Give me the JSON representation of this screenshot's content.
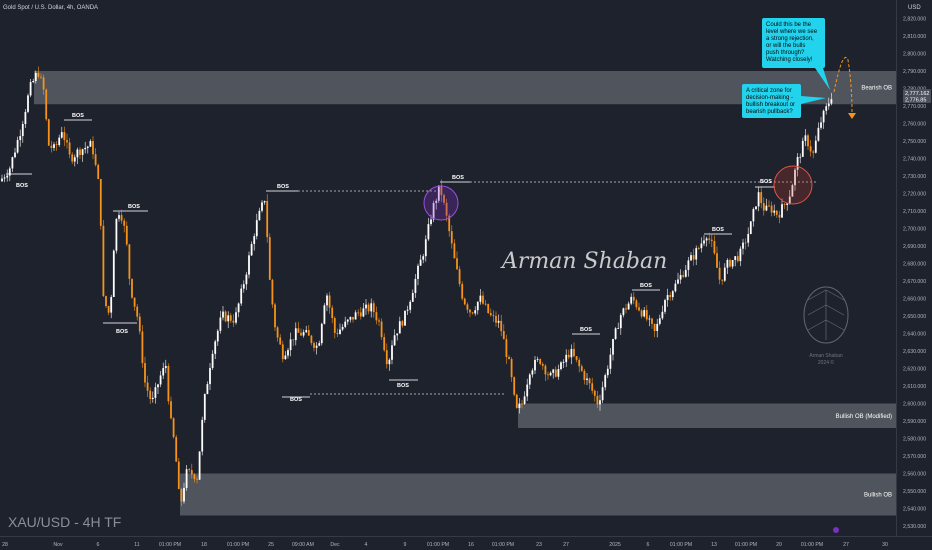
{
  "header": {
    "symbol_title": "Gold Spot / U.S. Dollar, 4h, OANDA"
  },
  "watermark": {
    "ticker": "XAU/USD - 4H TF",
    "signature": "Arman Shaban",
    "logo_name": "Arman Shaban",
    "logo_year": "2024 ©"
  },
  "price_axis": {
    "currency": "USD",
    "current_price": "2,777.162",
    "current_price_sub": "2,776.85"
  },
  "callouts": {
    "top": "Could this be the level where we see a strong rejection, or will the bulls push through? Watching closely!",
    "mid": "A critical zone for decision-making - bullish breakout or bearish pullback?"
  },
  "colors": {
    "background": "#1e222d",
    "zone": "#7a7d85",
    "candle_up": "#ffffff",
    "candle_down": "#f7931a",
    "callout_bg": "#22d3ee",
    "circle_purple": "#7b2fbe",
    "circle_red": "#c0392b"
  },
  "chart_data": {
    "type": "candlestick",
    "title": "Gold Spot / U.S. Dollar, 4h, OANDA",
    "ylim": [
      2525,
      2830
    ],
    "y_ticks": [
      "2,530.000",
      "2,540.000",
      "2,550.000",
      "2,560.000",
      "2,570.000",
      "2,580.000",
      "2,590.000",
      "2,600.000",
      "2,610.000",
      "2,620.000",
      "2,630.000",
      "2,640.000",
      "2,650.000",
      "2,660.000",
      "2,670.000",
      "2,680.000",
      "2,690.000",
      "2,700.000",
      "2,710.000",
      "2,720.000",
      "2,730.000",
      "2,740.000",
      "2,750.000",
      "2,760.000",
      "2,770.000",
      "2,780.000",
      "2,790.000",
      "2,800.000",
      "2,810.000",
      "2,820.000"
    ],
    "x_ticks": [
      "28",
      "Nov",
      "6",
      "11",
      "01:00 PM",
      "18",
      "01:00 PM",
      "25",
      "09:00 AM",
      "Dec",
      "4",
      "9",
      "01:00 PM",
      "16",
      "01:00 PM",
      "23",
      "27",
      "2025",
      "6",
      "01:00 PM",
      "13",
      "01:00 PM",
      "20",
      "01:00 PM",
      "27",
      "30"
    ],
    "zones": [
      {
        "label": "Bearish OB",
        "low": 2771,
        "high": 2790
      },
      {
        "label": "Bullish OB (Modified)",
        "low": 2586,
        "high": 2600
      },
      {
        "label": "Bullish OB",
        "low": 2536,
        "high": 2560
      }
    ],
    "bos_labels": [
      "BOS",
      "BOS",
      "BOS",
      "BOS",
      "BOS",
      "BOS",
      "BOS",
      "BOS",
      "BOS",
      "BOS",
      "BOS",
      "BOS"
    ],
    "price_path": [
      [
        0,
        2727
      ],
      [
        10,
        2735
      ],
      [
        20,
        2755
      ],
      [
        30,
        2780
      ],
      [
        38,
        2790
      ],
      [
        44,
        2778
      ],
      [
        48,
        2748
      ],
      [
        55,
        2745
      ],
      [
        62,
        2757
      ],
      [
        70,
        2740
      ],
      [
        80,
        2745
      ],
      [
        92,
        2748
      ],
      [
        100,
        2720
      ],
      [
        103,
        2660
      ],
      [
        110,
        2650
      ],
      [
        115,
        2702
      ],
      [
        120,
        2712
      ],
      [
        126,
        2695
      ],
      [
        130,
        2668
      ],
      [
        138,
        2648
      ],
      [
        145,
        2612
      ],
      [
        152,
        2600
      ],
      [
        160,
        2615
      ],
      [
        166,
        2622
      ],
      [
        170,
        2592
      ],
      [
        175,
        2575
      ],
      [
        180,
        2540
      ],
      [
        186,
        2560
      ],
      [
        193,
        2560
      ],
      [
        197,
        2558
      ],
      [
        204,
        2600
      ],
      [
        212,
        2630
      ],
      [
        222,
        2650
      ],
      [
        235,
        2648
      ],
      [
        245,
        2672
      ],
      [
        255,
        2700
      ],
      [
        265,
        2718
      ],
      [
        270,
        2668
      ],
      [
        276,
        2640
      ],
      [
        283,
        2628
      ],
      [
        295,
        2640
      ],
      [
        305,
        2640
      ],
      [
        318,
        2632
      ],
      [
        326,
        2665
      ],
      [
        335,
        2640
      ],
      [
        345,
        2645
      ],
      [
        358,
        2652
      ],
      [
        372,
        2655
      ],
      [
        380,
        2645
      ],
      [
        388,
        2622
      ],
      [
        393,
        2638
      ],
      [
        405,
        2650
      ],
      [
        414,
        2668
      ],
      [
        425,
        2690
      ],
      [
        432,
        2710
      ],
      [
        440,
        2724
      ],
      [
        447,
        2705
      ],
      [
        455,
        2680
      ],
      [
        463,
        2660
      ],
      [
        471,
        2652
      ],
      [
        480,
        2660
      ],
      [
        490,
        2650
      ],
      [
        500,
        2645
      ],
      [
        510,
        2620
      ],
      [
        516,
        2595
      ],
      [
        522,
        2600
      ],
      [
        530,
        2620
      ],
      [
        540,
        2625
      ],
      [
        550,
        2615
      ],
      [
        560,
        2620
      ],
      [
        570,
        2630
      ],
      [
        580,
        2620
      ],
      [
        590,
        2610
      ],
      [
        598,
        2600
      ],
      [
        605,
        2615
      ],
      [
        612,
        2632
      ],
      [
        620,
        2650
      ],
      [
        632,
        2660
      ],
      [
        645,
        2650
      ],
      [
        655,
        2640
      ],
      [
        665,
        2660
      ],
      [
        676,
        2668
      ],
      [
        688,
        2680
      ],
      [
        700,
        2690
      ],
      [
        706,
        2698
      ],
      [
        712,
        2690
      ],
      [
        720,
        2670
      ],
      [
        728,
        2680
      ],
      [
        740,
        2685
      ],
      [
        750,
        2700
      ],
      [
        758,
        2720
      ],
      [
        765,
        2710
      ],
      [
        770,
        2712
      ],
      [
        778,
        2708
      ],
      [
        785,
        2714
      ],
      [
        790,
        2720
      ],
      [
        798,
        2740
      ],
      [
        806,
        2752
      ],
      [
        813,
        2742
      ],
      [
        820,
        2760
      ],
      [
        826,
        2768
      ],
      [
        832,
        2777
      ]
    ]
  },
  "time_axis": {
    "tick_labels": [
      "28",
      "Nov",
      "6",
      "11",
      "01:00 PM",
      "18",
      "01:00 PM",
      "25",
      "09:00 AM",
      "Dec",
      "4",
      "9",
      "01:00 PM",
      "16",
      "01:00 PM",
      "23",
      "27",
      "2025",
      "6",
      "01:00 PM",
      "13",
      "01:00 PM",
      "20",
      "01:00 PM",
      "27",
      "30"
    ]
  }
}
